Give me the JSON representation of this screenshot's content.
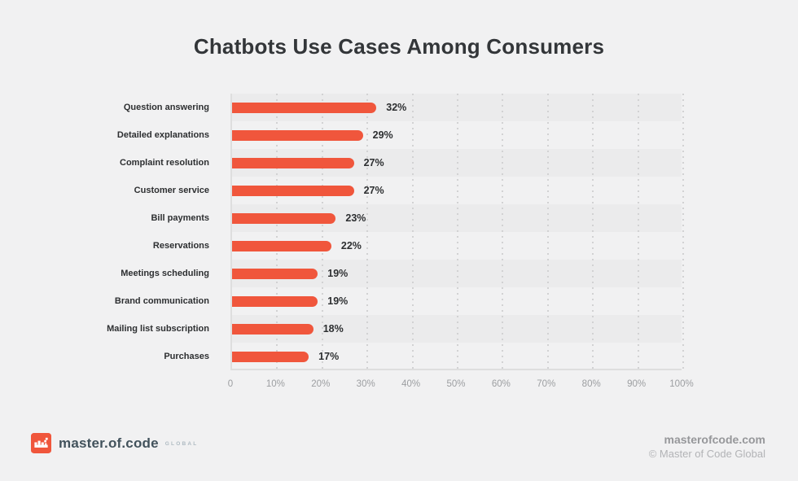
{
  "page": {
    "title": "Chatbots Use Cases Among Consumers",
    "background": "#f1f1f2"
  },
  "chart_data": {
    "type": "bar",
    "orientation": "horizontal",
    "title": "Chatbots Use Cases Among Consumers",
    "categories": [
      "Question answering",
      "Detailed explanations",
      "Complaint resolution",
      "Customer service",
      "Bill payments",
      "Reservations",
      "Meetings scheduling",
      "Brand communication",
      "Mailing list subscription",
      "Purchases"
    ],
    "values": [
      32,
      29,
      27,
      27,
      23,
      22,
      19,
      19,
      18,
      17
    ],
    "value_labels": [
      "32%",
      "29%",
      "27%",
      "27%",
      "23%",
      "22%",
      "19%",
      "19%",
      "18%",
      "17%"
    ],
    "value_suffix": "%",
    "xlabel": "",
    "ylabel": "",
    "xlim": [
      0,
      100
    ],
    "x_ticks": [
      "0",
      "10%",
      "20%",
      "30%",
      "40%",
      "50%",
      "60%",
      "70%",
      "80%",
      "90%",
      "100%"
    ],
    "x_tick_values": [
      0,
      10,
      20,
      30,
      40,
      50,
      60,
      70,
      80,
      90,
      100
    ],
    "grid": "vertical-dashed",
    "row_stripes": true,
    "legend": "none",
    "bar_color": "#f0563c",
    "stripe_color": "#ebebec",
    "axis_color": "#dedede"
  },
  "footer": {
    "logo_icon": "pixel-crown-icon",
    "logo_text": "master.of.code",
    "logo_suffix": "GLOBAL",
    "logo_color": "#f0563c",
    "website": "masterofcode.com",
    "copyright": "© Master of Code Global"
  }
}
